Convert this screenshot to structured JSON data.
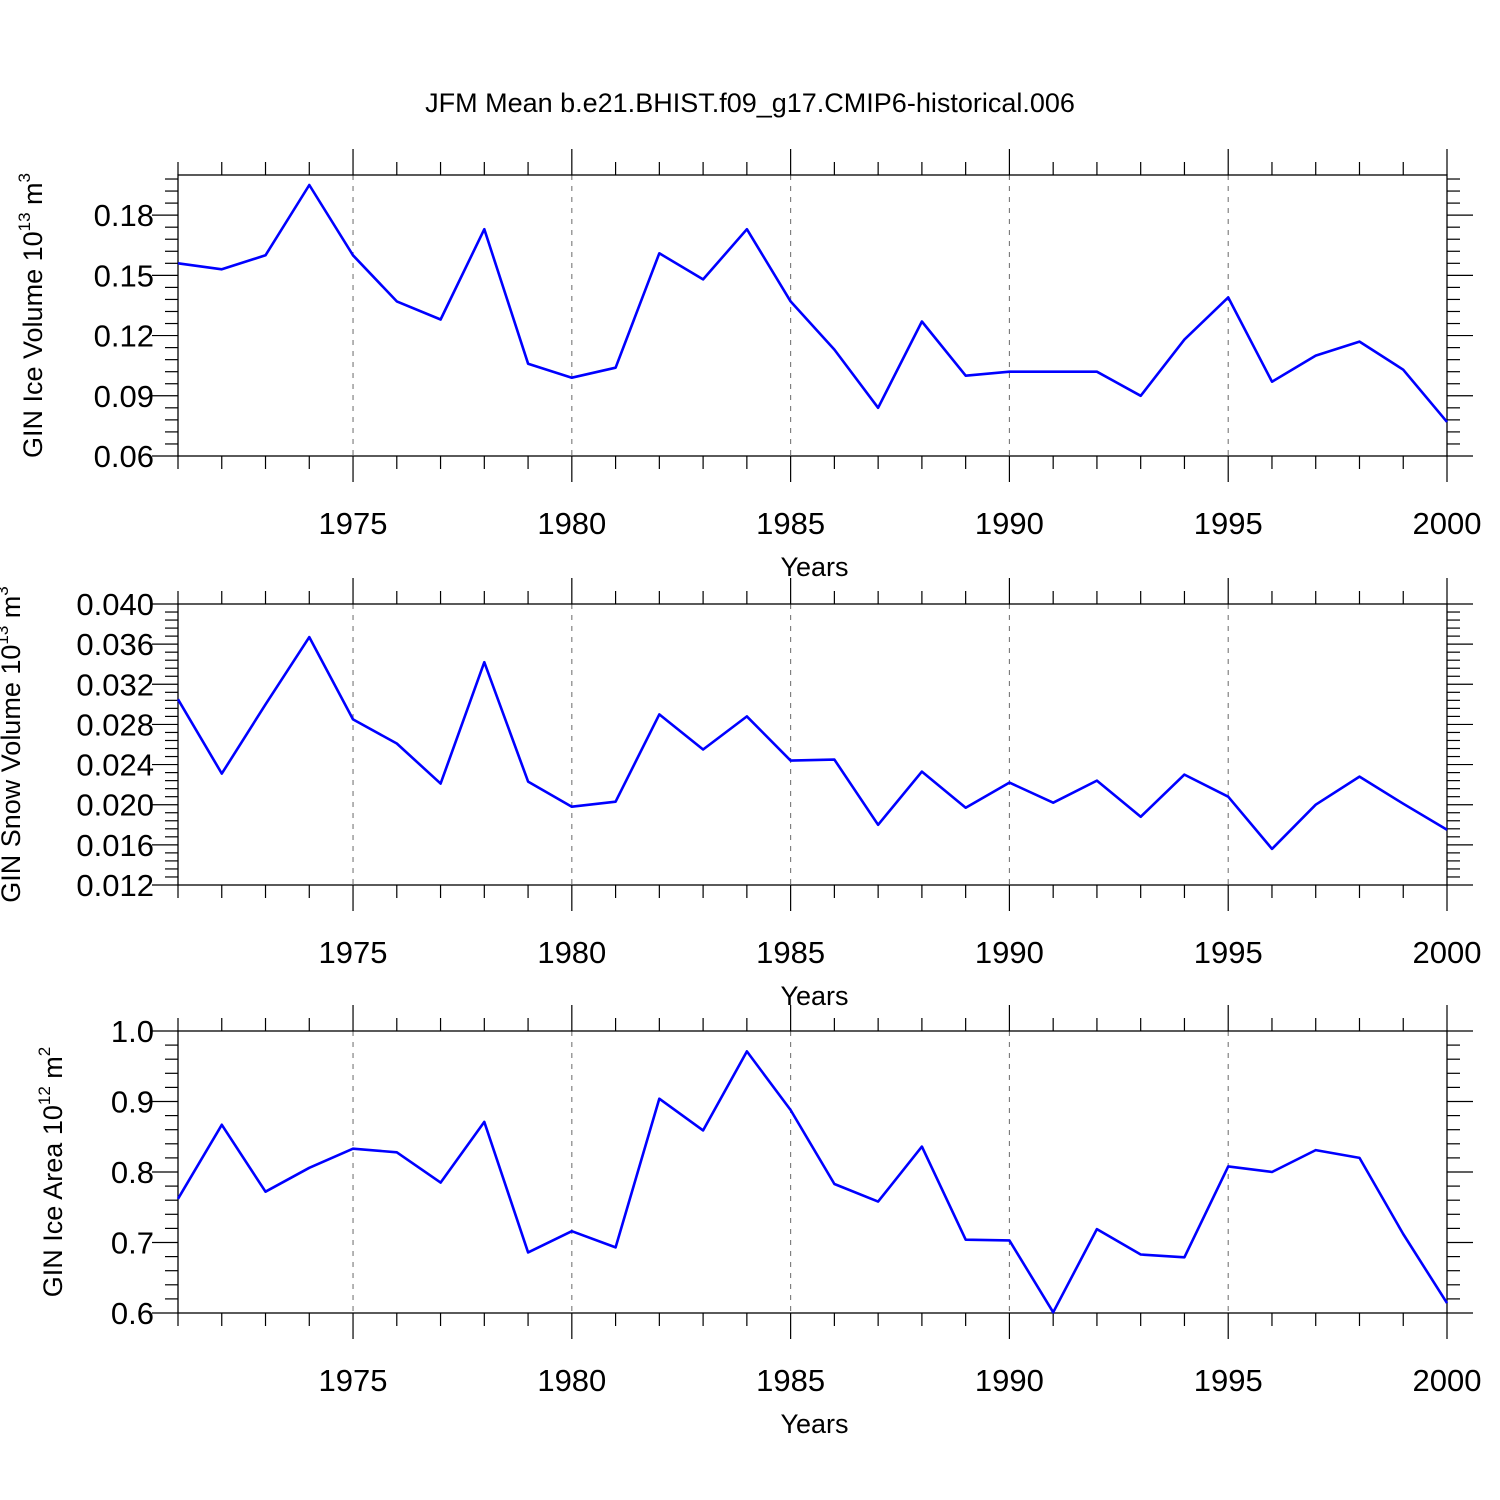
{
  "title": "JFM Mean b.e21.BHIST.f09_g17.CMIP6-historical.006",
  "colors": {
    "series": "#0000ff",
    "axis": "#000000",
    "grid": "#777777"
  },
  "chart_data": [
    {
      "type": "line",
      "xlabel": "Years",
      "ylabel": {
        "main": "GIN Ice Volume 10",
        "sup1": "13",
        "mid": " m",
        "sup2": "3"
      },
      "xlim": [
        1971,
        2000
      ],
      "ylim": [
        0.06,
        0.2
      ],
      "xticks": [
        1975,
        1980,
        1985,
        1990,
        1995,
        2000
      ],
      "xtick_labels": [
        "1975",
        "1980",
        "1985",
        "1990",
        "1995",
        "2000"
      ],
      "yticks": [
        0.06,
        0.09,
        0.12,
        0.15,
        0.18
      ],
      "ytick_labels": [
        "0.06",
        "0.09",
        "0.12",
        "0.15",
        "0.18"
      ],
      "grid": "dashed vertical at major x ticks",
      "x": [
        1971,
        1972,
        1973,
        1974,
        1975,
        1976,
        1977,
        1978,
        1979,
        1980,
        1981,
        1982,
        1983,
        1984,
        1985,
        1986,
        1987,
        1988,
        1989,
        1990,
        1991,
        1992,
        1993,
        1994,
        1995,
        1996,
        1997,
        1998,
        1999,
        2000
      ],
      "values": [
        0.156,
        0.153,
        0.16,
        0.195,
        0.16,
        0.137,
        0.128,
        0.173,
        0.106,
        0.099,
        0.104,
        0.161,
        0.148,
        0.173,
        0.137,
        0.113,
        0.084,
        0.127,
        0.1,
        0.102,
        0.102,
        0.102,
        0.09,
        0.118,
        0.139,
        0.097,
        0.11,
        0.117,
        0.103,
        0.077
      ]
    },
    {
      "type": "line",
      "xlabel": "Years",
      "ylabel": {
        "main": "GIN Snow Volume 10",
        "sup1": "13",
        "mid": " m",
        "sup2": "3"
      },
      "xlim": [
        1971,
        2000
      ],
      "ylim": [
        0.012,
        0.04
      ],
      "xticks": [
        1975,
        1980,
        1985,
        1990,
        1995,
        2000
      ],
      "xtick_labels": [
        "1975",
        "1980",
        "1985",
        "1990",
        "1995",
        "2000"
      ],
      "yticks": [
        0.012,
        0.016,
        0.02,
        0.024,
        0.028,
        0.032,
        0.036,
        0.04
      ],
      "ytick_labels": [
        "0.012",
        "0.016",
        "0.020",
        "0.024",
        "0.028",
        "0.032",
        "0.036",
        "0.040"
      ],
      "grid": "dashed vertical at major x ticks",
      "x": [
        1971,
        1972,
        1973,
        1974,
        1975,
        1976,
        1977,
        1978,
        1979,
        1980,
        1981,
        1982,
        1983,
        1984,
        1985,
        1986,
        1987,
        1988,
        1989,
        1990,
        1991,
        1992,
        1993,
        1994,
        1995,
        1996,
        1997,
        1998,
        1999,
        2000
      ],
      "values": [
        0.0305,
        0.0231,
        0.03,
        0.0367,
        0.0285,
        0.0261,
        0.0221,
        0.0342,
        0.0223,
        0.0198,
        0.0203,
        0.029,
        0.0255,
        0.0288,
        0.0244,
        0.0245,
        0.018,
        0.0233,
        0.0197,
        0.0222,
        0.0202,
        0.0224,
        0.0188,
        0.023,
        0.0208,
        0.0156,
        0.02,
        0.0228,
        0.0201,
        0.0175
      ]
    },
    {
      "type": "line",
      "xlabel": "Years",
      "ylabel": {
        "main": "GIN Ice Area 10",
        "sup1": "12",
        "mid": " m",
        "sup2": "2"
      },
      "xlim": [
        1971,
        2000
      ],
      "ylim": [
        0.6,
        1.0
      ],
      "xticks": [
        1975,
        1980,
        1985,
        1990,
        1995,
        2000
      ],
      "xtick_labels": [
        "1975",
        "1980",
        "1985",
        "1990",
        "1995",
        "2000"
      ],
      "yticks": [
        0.6,
        0.7,
        0.8,
        0.9,
        1.0
      ],
      "ytick_labels": [
        "0.6",
        "0.7",
        "0.8",
        "0.9",
        "1.0"
      ],
      "grid": "dashed vertical at major x ticks",
      "x": [
        1971,
        1972,
        1973,
        1974,
        1975,
        1976,
        1977,
        1978,
        1979,
        1980,
        1981,
        1982,
        1983,
        1984,
        1985,
        1986,
        1987,
        1988,
        1989,
        1990,
        1991,
        1992,
        1993,
        1994,
        1995,
        1996,
        1997,
        1998,
        1999,
        2000
      ],
      "values": [
        0.762,
        0.867,
        0.772,
        0.806,
        0.833,
        0.828,
        0.785,
        0.871,
        0.686,
        0.716,
        0.693,
        0.904,
        0.859,
        0.971,
        0.888,
        0.783,
        0.758,
        0.836,
        0.704,
        0.703,
        0.601,
        0.719,
        0.683,
        0.679,
        0.808,
        0.8,
        0.831,
        0.82,
        0.712,
        0.614
      ]
    }
  ]
}
